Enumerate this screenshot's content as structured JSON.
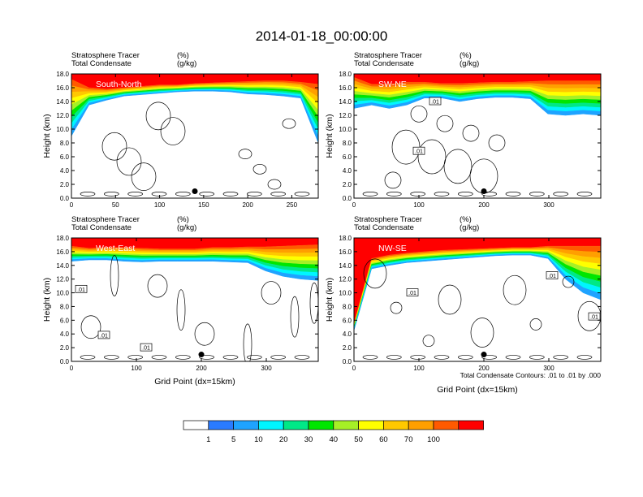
{
  "title": "2014-01-18_00:00:00",
  "colors": [
    "#ffffff",
    "#2a7bff",
    "#1fa3ff",
    "#00f5ff",
    "#00e887",
    "#00e600",
    "#a6f026",
    "#ffff00",
    "#ffc800",
    "#ff9f00",
    "#ff5a00",
    "#ff0000"
  ],
  "colorbar": {
    "labels": [
      "1",
      "5",
      "10",
      "20",
      "30",
      "40",
      "50",
      "60",
      "70",
      "100"
    ]
  },
  "contour_note": "Total Condensate Contours: .01 to .01 by .000",
  "chart_data": [
    {
      "type": "heatmap",
      "name": "South-North",
      "left_label_1": "Stratosphere Tracer",
      "right_label_1": "(%)",
      "left_label_2": "Total Condensate",
      "right_label_2": "(g/kg)",
      "ylabel": "Height (km)",
      "xlabel": "",
      "xlim": [
        0,
        280
      ],
      "ylim": [
        0,
        18
      ],
      "xticks": [
        "0",
        "50",
        "100",
        "150",
        "200",
        "250"
      ],
      "yticks": [
        "0.0",
        "2.0",
        "4.0",
        "6.0",
        "8.0",
        "10.0",
        "12.0",
        "14.0",
        "16.0",
        "18.0"
      ],
      "tracer_100_base_km": [
        17.2,
        16.0,
        15.8,
        16.0,
        16.2,
        16.4,
        16.4,
        16.6,
        16.7,
        16.8,
        16.9,
        17.0,
        17.0,
        16.8,
        16.5
      ],
      "tracer_1_base_km": [
        9.0,
        13.5,
        14.2,
        14.8,
        15.0,
        15.2,
        15.4,
        15.5,
        15.5,
        15.4,
        15.1,
        15.0,
        14.8,
        14.5,
        8.0
      ],
      "contour_labels": [],
      "marker": {
        "x": 140,
        "y": 1.0
      }
    },
    {
      "type": "heatmap",
      "name": "SW-NE",
      "left_label_1": "Stratosphere Tracer",
      "right_label_1": "(%)",
      "left_label_2": "Total Condensate",
      "right_label_2": "(g/kg)",
      "ylabel": "Height (km)",
      "xlabel": "",
      "xlim": [
        0,
        380
      ],
      "ylim": [
        0,
        18
      ],
      "xticks": [
        "0",
        "100",
        "200",
        "300"
      ],
      "yticks": [
        "0.0",
        "2.0",
        "4.0",
        "6.0",
        "8.0",
        "10.0",
        "12.0",
        "14.0",
        "16.0",
        "18.0"
      ],
      "tracer_100_base_km": [
        17.5,
        16.5,
        16.5,
        16.8,
        16.8,
        16.6,
        16.6,
        16.7,
        16.8,
        16.8,
        16.9,
        17.0,
        17.0,
        17.0,
        17.0
      ],
      "tracer_1_base_km": [
        13.0,
        13.5,
        13.0,
        13.5,
        14.5,
        14.5,
        14.0,
        14.4,
        14.6,
        14.6,
        14.4,
        12.2,
        12.0,
        12.2,
        12.0
      ],
      "contour_labels": [
        {
          "text": ".01",
          "x": 125,
          "y": 14.0
        },
        {
          "text": ".01",
          "x": 100,
          "y": 6.8
        }
      ],
      "marker": {
        "x": 200,
        "y": 1.0
      }
    },
    {
      "type": "heatmap",
      "name": "West-East",
      "left_label_1": "Stratosphere Tracer",
      "right_label_1": "(%)",
      "left_label_2": "Total Condensate",
      "right_label_2": "(g/kg)",
      "ylabel": "Height (km)",
      "xlabel": "Grid Point (dx=15km)",
      "xlim": [
        0,
        380
      ],
      "ylim": [
        0,
        18
      ],
      "xticks": [
        "0",
        "100",
        "200",
        "300"
      ],
      "yticks": [
        "0.0",
        "2.0",
        "4.0",
        "6.0",
        "8.0",
        "10.0",
        "12.0",
        "14.0",
        "16.0",
        "18.0"
      ],
      "tracer_100_base_km": [
        16.8,
        16.5,
        16.6,
        16.6,
        16.5,
        16.4,
        16.4,
        16.4,
        16.6,
        16.6,
        16.7,
        16.7,
        16.8,
        16.9,
        17.0
      ],
      "tracer_1_base_km": [
        14.6,
        14.8,
        14.8,
        14.6,
        14.5,
        14.6,
        14.6,
        14.6,
        14.6,
        14.5,
        14.4,
        13.2,
        12.4,
        12.0,
        11.8
      ],
      "contour_labels": [
        {
          "text": ".01",
          "x": 15,
          "y": 10.5
        },
        {
          "text": ".01",
          "x": 50,
          "y": 3.8
        },
        {
          "text": ".01",
          "x": 115,
          "y": 2.0
        }
      ],
      "marker": {
        "x": 200,
        "y": 1.0
      }
    },
    {
      "type": "heatmap",
      "name": "NW-SE",
      "left_label_1": "Stratosphere Tracer",
      "right_label_1": "(%)",
      "left_label_2": "Total Condensate",
      "right_label_2": "(g/kg)",
      "ylabel": "Height (km)",
      "xlabel": "Grid Point (dx=15km)",
      "xlim": [
        0,
        380
      ],
      "ylim": [
        0,
        18
      ],
      "xticks": [
        "0",
        "100",
        "200",
        "300"
      ],
      "yticks": [
        "0.0",
        "2.0",
        "4.0",
        "6.0",
        "8.0",
        "10.0",
        "12.0",
        "14.0",
        "16.0",
        "18.0"
      ],
      "tracer_100_base_km": [
        5.5,
        15.0,
        15.5,
        15.8,
        16.0,
        16.2,
        16.3,
        16.4,
        16.5,
        16.6,
        16.6,
        16.8,
        16.8,
        16.8,
        16.8
      ],
      "tracer_1_base_km": [
        4.5,
        13.5,
        14.0,
        14.4,
        14.6,
        14.8,
        15.0,
        15.2,
        15.4,
        15.5,
        15.5,
        15.0,
        12.0,
        10.0,
        9.0
      ],
      "contour_labels": [
        {
          "text": ".01",
          "x": 90,
          "y": 10.0
        },
        {
          "text": ".01",
          "x": 305,
          "y": 12.5
        },
        {
          "text": ".01",
          "x": 370,
          "y": 6.5
        }
      ],
      "marker": {
        "x": 200,
        "y": 1.0
      }
    }
  ]
}
